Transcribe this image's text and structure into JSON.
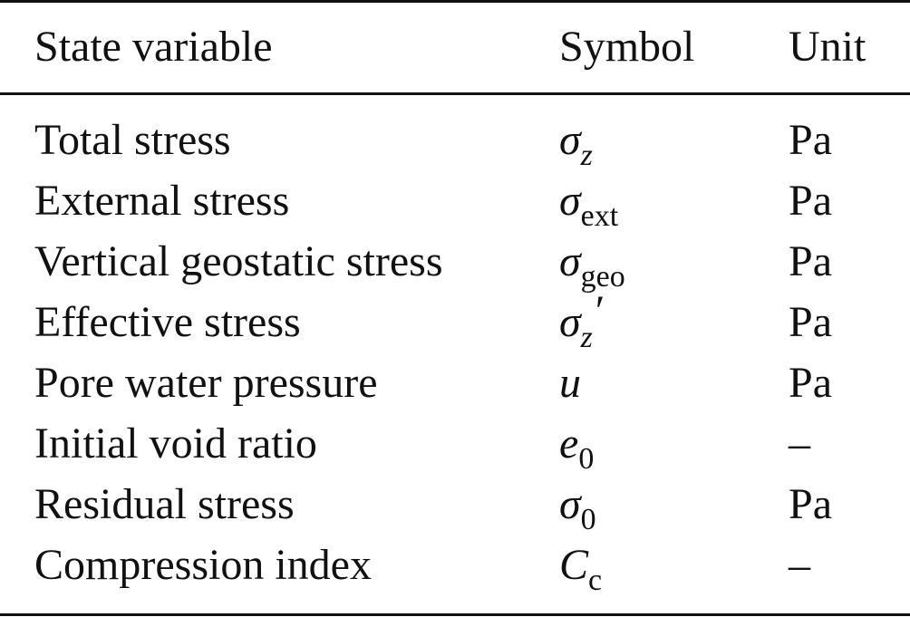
{
  "table": {
    "columns": [
      "State variable",
      "Symbol",
      "Unit"
    ],
    "rows": [
      {
        "name": "Total stress",
        "symbol": {
          "base": "σ",
          "sub": "z",
          "sub_italic": true
        },
        "unit": "Pa"
      },
      {
        "name": "External stress",
        "symbol": {
          "base": "σ",
          "sub": "ext"
        },
        "unit": "Pa"
      },
      {
        "name": "Vertical geostatic stress",
        "symbol": {
          "base": "σ",
          "sub": "geo"
        },
        "unit": "Pa"
      },
      {
        "name": "Effective stress",
        "symbol": {
          "base": "σ",
          "sub": "z",
          "sub_italic": true,
          "prime": "′"
        },
        "unit": "Pa"
      },
      {
        "name": "Pore water pressure",
        "symbol": {
          "base": "u"
        },
        "unit": "Pa"
      },
      {
        "name": "Initial void ratio",
        "symbol": {
          "base": "e",
          "sub": "0"
        },
        "unit": "–"
      },
      {
        "name": "Residual stress",
        "symbol": {
          "base": "σ",
          "sub": "0"
        },
        "unit": "Pa"
      },
      {
        "name": "Compression index",
        "symbol": {
          "base": "C",
          "sub": "c"
        },
        "unit": "–"
      }
    ]
  }
}
